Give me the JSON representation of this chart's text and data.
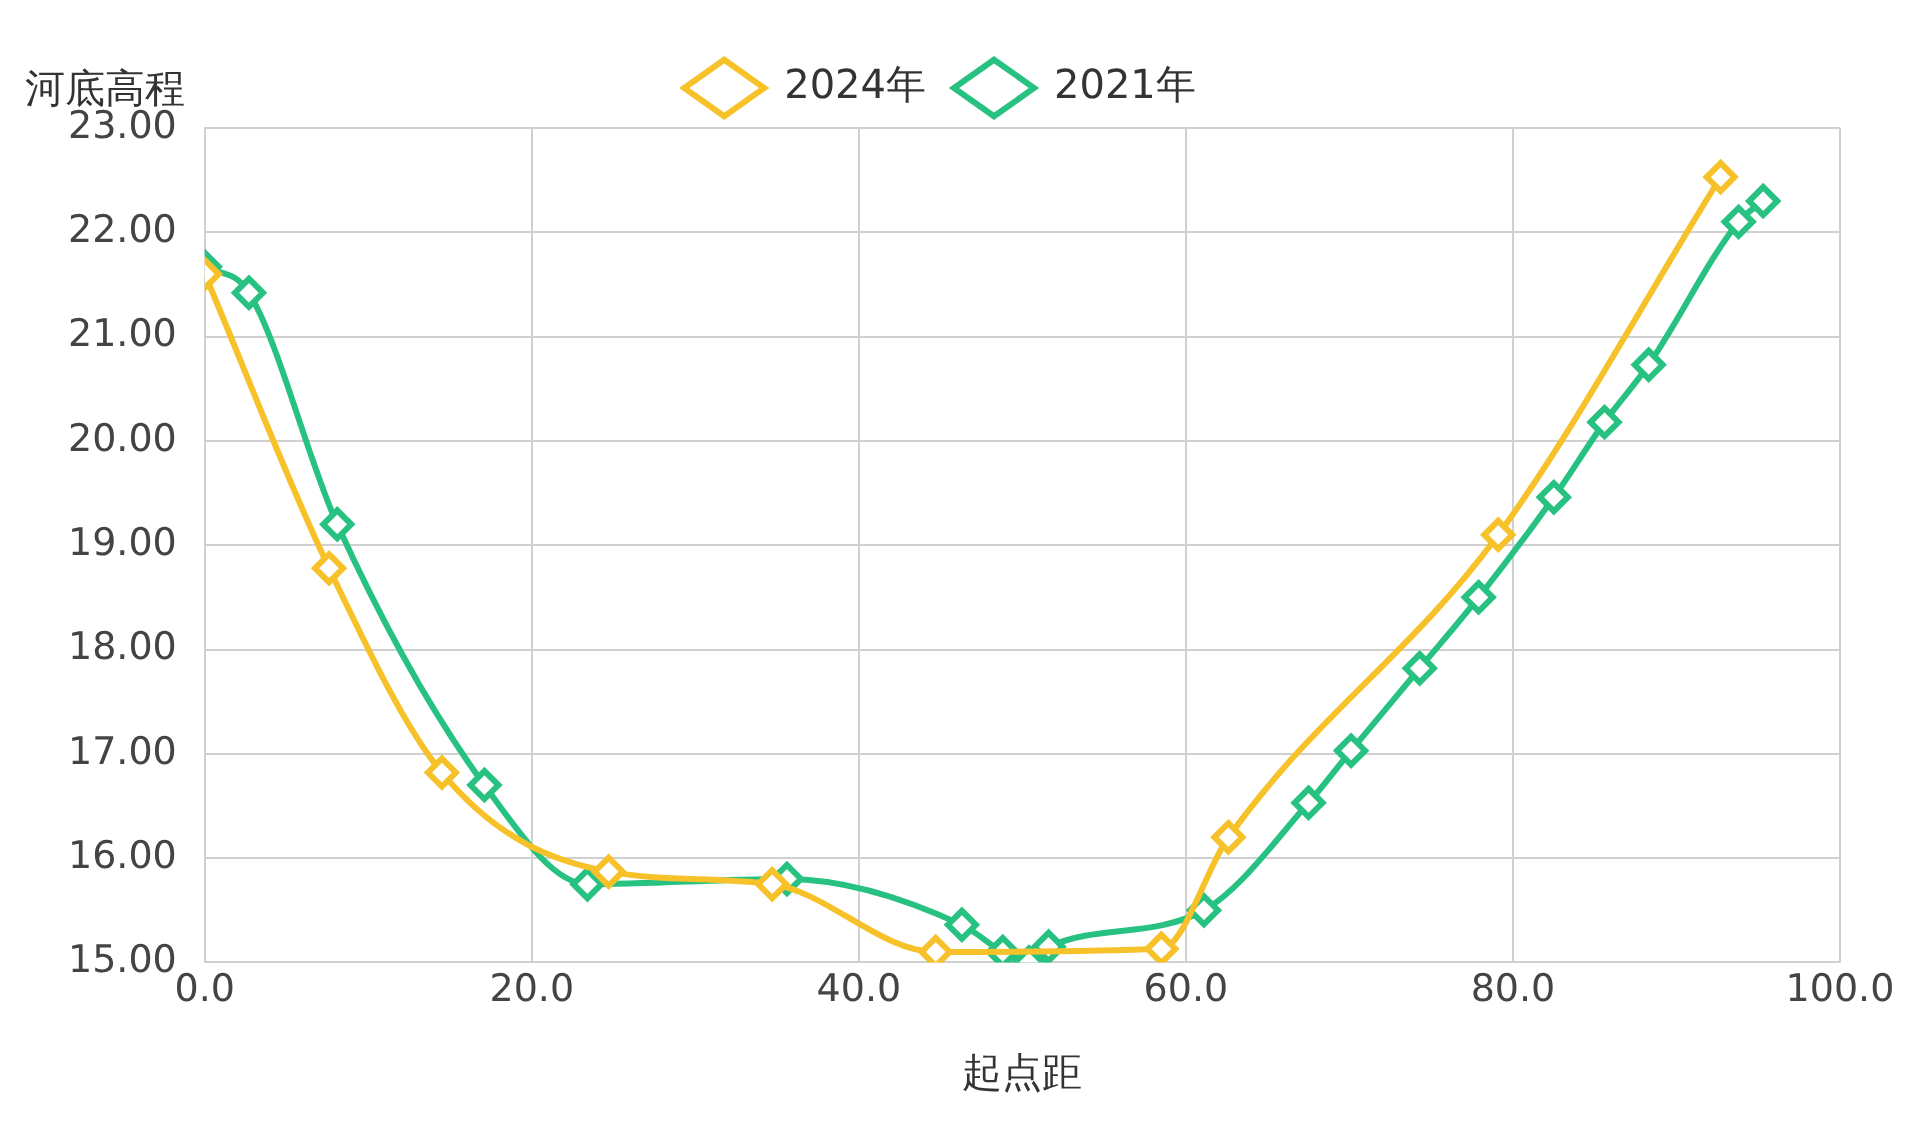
{
  "chart_data": {
    "type": "line",
    "xlabel": "起点距",
    "ylabel": "河底高程",
    "series": [
      {
        "name": "2021年",
        "color": "#27c281",
        "x": [
          0,
          2.7,
          8.1,
          17.1,
          23.4,
          35.6,
          46.3,
          48.8,
          50.4,
          51.6,
          61.1,
          67.5,
          70.1,
          74.3,
          77.9,
          82.5,
          85.6,
          88.3,
          93.8,
          95.3
        ],
        "values": [
          21.67,
          21.42,
          19.2,
          16.7,
          15.75,
          15.8,
          15.36,
          15.1,
          15.0,
          15.15,
          15.5,
          16.53,
          17.03,
          17.82,
          18.5,
          19.46,
          20.18,
          20.73,
          22.1,
          22.3
        ]
      },
      {
        "name": "2024年",
        "color": "#f7c12a",
        "x": [
          0,
          7.6,
          14.5,
          24.7,
          34.7,
          44.7,
          58.5,
          62.6,
          79.1,
          92.7
        ],
        "values": [
          21.6,
          18.78,
          16.82,
          15.87,
          15.75,
          15.1,
          15.13,
          16.2,
          19.1,
          22.53
        ]
      }
    ],
    "xlim": [
      0,
      100
    ],
    "xticks": [
      {
        "value": 0,
        "label": "0.0"
      },
      {
        "value": 20,
        "label": "20.0"
      },
      {
        "value": 40,
        "label": "40.0"
      },
      {
        "value": 60,
        "label": "60.0"
      },
      {
        "value": 80,
        "label": "80.0"
      },
      {
        "value": 100,
        "label": "100.0"
      }
    ],
    "ylim": [
      15,
      23
    ],
    "yticks": [
      {
        "value": 15,
        "label": "15.00"
      },
      {
        "value": 16,
        "label": "16.00"
      },
      {
        "value": 17,
        "label": "17.00"
      },
      {
        "value": 18,
        "label": "18.00"
      },
      {
        "value": 19,
        "label": "19.00"
      },
      {
        "value": 20,
        "label": "20.00"
      },
      {
        "value": 21,
        "label": "21.00"
      },
      {
        "value": 22,
        "label": "22.00"
      },
      {
        "value": 23,
        "label": "23.00"
      }
    ],
    "grid": true,
    "legend": "top",
    "marker": "diamond",
    "line_style": "solid"
  }
}
